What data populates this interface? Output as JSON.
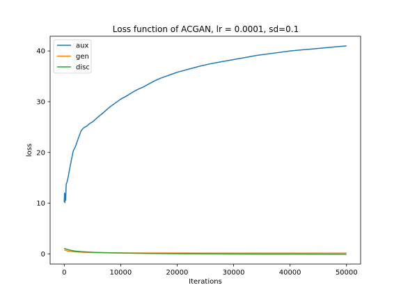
{
  "chart_data": {
    "type": "line",
    "title": "Loss function of ACGAN, lr = 0.0001, sd=0.1",
    "xlabel": "Iterations",
    "ylabel": "loss",
    "xlim": [
      -2500,
      52500
    ],
    "ylim": [
      -2.0,
      42.9
    ],
    "xticks": [
      0,
      10000,
      20000,
      30000,
      40000,
      50000
    ],
    "xtick_labels": [
      "0",
      "10000",
      "20000",
      "30000",
      "40000",
      "50000"
    ],
    "yticks": [
      0,
      10,
      20,
      30,
      40
    ],
    "ytick_labels": [
      "0",
      "10",
      "20",
      "30",
      "40"
    ],
    "grid": false,
    "legend": "upper-left",
    "series": [
      {
        "name": "aux",
        "color": "#1f77b4",
        "x": [
          0,
          60,
          120,
          180,
          250,
          350,
          450,
          600,
          800,
          1000,
          1300,
          1600,
          2000,
          2500,
          3000,
          3500,
          4000,
          4500,
          5000,
          6000,
          7000,
          8000,
          9000,
          10000,
          11000,
          12000,
          13000,
          14000,
          15000,
          16000,
          17000,
          18000,
          19000,
          20000,
          22000,
          24000,
          26000,
          28000,
          30000,
          32000,
          34000,
          36000,
          38000,
          40000,
          42000,
          44000,
          46000,
          48000,
          50000
        ],
        "y": [
          10.2,
          12.0,
          10.1,
          11.8,
          10.6,
          13.8,
          14.0,
          14.6,
          15.8,
          17.0,
          18.7,
          20.3,
          21.2,
          22.8,
          24.3,
          24.9,
          25.2,
          25.7,
          26.0,
          27.0,
          27.9,
          28.9,
          29.7,
          30.5,
          31.1,
          31.8,
          32.4,
          32.9,
          33.5,
          34.1,
          34.6,
          35.0,
          35.4,
          35.8,
          36.4,
          37.0,
          37.5,
          37.9,
          38.3,
          38.7,
          39.1,
          39.4,
          39.7,
          40.0,
          40.2,
          40.4,
          40.6,
          40.8,
          41.0
        ]
      },
      {
        "name": "gen",
        "color": "#ff7f0e",
        "x": [
          0,
          500,
          1000,
          1500,
          2000,
          3000,
          4000,
          5000,
          7000,
          10000,
          15000,
          20000,
          25000,
          30000,
          35000,
          40000,
          45000,
          50000
        ],
        "y": [
          0.8,
          0.6,
          0.5,
          0.45,
          0.4,
          0.35,
          0.3,
          0.28,
          0.25,
          0.2,
          0.18,
          0.18,
          0.17,
          0.17,
          0.16,
          0.16,
          0.16,
          0.16
        ]
      },
      {
        "name": "disc",
        "color": "#2ca02c",
        "x": [
          0,
          500,
          1000,
          1500,
          2000,
          3000,
          4000,
          5000,
          7000,
          10000,
          15000,
          20000,
          25000,
          30000,
          35000,
          40000,
          45000,
          50000
        ],
        "y": [
          1.1,
          0.9,
          0.75,
          0.65,
          0.55,
          0.45,
          0.38,
          0.32,
          0.25,
          0.18,
          0.1,
          0.05,
          0.0,
          -0.02,
          -0.04,
          -0.05,
          -0.06,
          -0.07
        ]
      }
    ]
  }
}
